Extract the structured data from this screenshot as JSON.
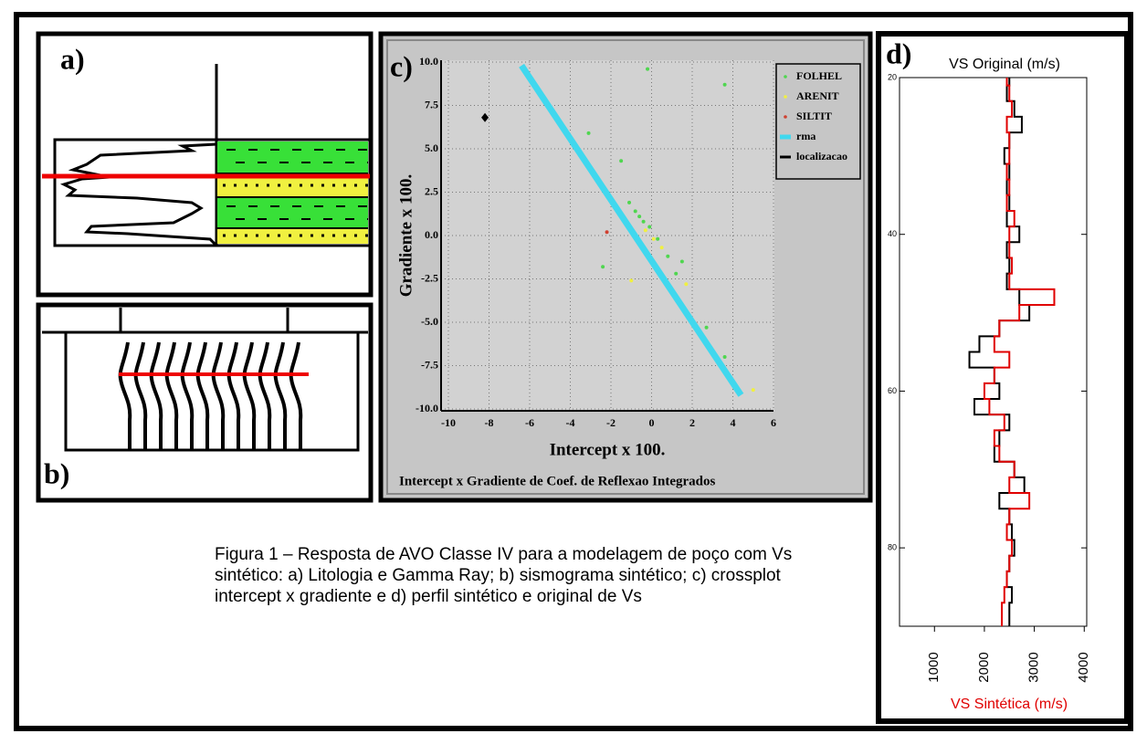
{
  "figure": {
    "panel_a_label": "a)",
    "panel_b_label": "b)",
    "caption": "Figura 1 – Resposta de AVO Classe IV para a modelagem de poço com Vs sintético: a) Litologia e Gamma Ray; b) sismograma sintético; c) crossplot intercept x gradiente e d) perfil sintético e original de Vs"
  },
  "chart_data": [
    {
      "type": "scatter",
      "panel_label": "c)",
      "xlabel": "Intercept x 100.",
      "ylabel": "Gradiente x 100.",
      "subtitle": "Intercept x Gradiente de Coef. de Reflexao Integrados",
      "xlim": [
        -10,
        6
      ],
      "ylim": [
        -10,
        10
      ],
      "xticks": [
        -10,
        -8,
        -6,
        -4,
        -2,
        0,
        2,
        4,
        6
      ],
      "yticks": [
        {
          "value": 10,
          "label": "10.0"
        },
        7.5,
        {
          "value": 5,
          "label": "5.0"
        },
        2.5,
        {
          "value": 0,
          "label": "0.0"
        },
        -2.5,
        {
          "value": -5,
          "label": "-5.0"
        },
        -7.5,
        {
          "value": -10,
          "label": "-10.0"
        }
      ],
      "grid": true,
      "legend": "upper right",
      "series": [
        {
          "name": "FOLHEL",
          "color": "#4fd64f",
          "kind": "points",
          "x": [
            -0.2,
            3.6,
            -3.1,
            -1.5,
            -2.4,
            -1.1,
            -0.8,
            -0.4,
            -0.1,
            0.3,
            0.8,
            1.5,
            1.2,
            2.7,
            3.6,
            -0.6
          ],
          "values": [
            9.6,
            8.7,
            5.9,
            4.3,
            -1.8,
            1.9,
            1.4,
            0.8,
            0.5,
            -0.2,
            -1.2,
            -1.5,
            -2.2,
            -5.3,
            -7.0,
            1.1
          ]
        },
        {
          "name": "ARENIT",
          "color": "#f0f040",
          "kind": "points",
          "x": [
            -1.0,
            5.0,
            0.1,
            0.5,
            -0.2,
            1.7,
            -0.3
          ],
          "values": [
            -2.6,
            -8.9,
            -0.2,
            -0.7,
            -1.2,
            -2.8,
            0.3
          ]
        },
        {
          "name": "SILTIT",
          "color": "#d04030",
          "kind": "points",
          "x": [
            -2.2
          ],
          "values": [
            0.2
          ]
        },
        {
          "name": "rma",
          "color": "#40d8ee",
          "kind": "line",
          "x": [
            -6.4,
            4.4
          ],
          "values": [
            9.8,
            -9.2
          ]
        },
        {
          "name": "localizacao",
          "color": "#000000",
          "kind": "diamond",
          "x": [
            -8.2
          ],
          "values": [
            6.8
          ]
        }
      ]
    },
    {
      "type": "depthlog",
      "panel_label": "d)",
      "title": "VS Original (m/s)",
      "xlabel": "VS Sintética (m/s)",
      "xlabel_color": "#e00000",
      "xlim": [
        300,
        4050
      ],
      "ylim": [
        20,
        90
      ],
      "xticks": [
        1000,
        2000,
        3000,
        4000
      ],
      "yticks": [
        20,
        40,
        60,
        80
      ],
      "y": [
        20,
        22,
        24,
        26,
        28,
        30,
        32,
        34,
        36,
        38,
        40,
        42,
        44,
        46,
        48,
        50,
        52,
        54,
        56,
        58,
        60,
        62,
        64,
        66,
        68,
        70,
        72,
        74,
        76,
        78,
        80,
        82,
        84,
        86,
        88,
        90
      ],
      "series": [
        {
          "color": "#000000",
          "values": [
            2500,
            2450,
            2600,
            2750,
            2500,
            2400,
            2500,
            2450,
            2500,
            2450,
            2700,
            2450,
            2500,
            2450,
            2700,
            2900,
            2300,
            1900,
            1700,
            2200,
            2300,
            1800,
            2500,
            2300,
            2200,
            2600,
            2800,
            2300,
            2500,
            2550,
            2600,
            2500,
            2450,
            2550,
            2500,
            2500
          ]
        },
        {
          "color": "#e00000",
          "values": [
            2450,
            2500,
            2550,
            2450,
            2500,
            2500,
            2450,
            2500,
            2450,
            2600,
            2500,
            2500,
            2550,
            2500,
            3400,
            2700,
            2300,
            2200,
            2500,
            2200,
            2000,
            2100,
            2400,
            2200,
            2300,
            2600,
            2500,
            2900,
            2500,
            2450,
            2550,
            2500,
            2450,
            2400,
            2350,
            2350
          ]
        }
      ]
    }
  ]
}
